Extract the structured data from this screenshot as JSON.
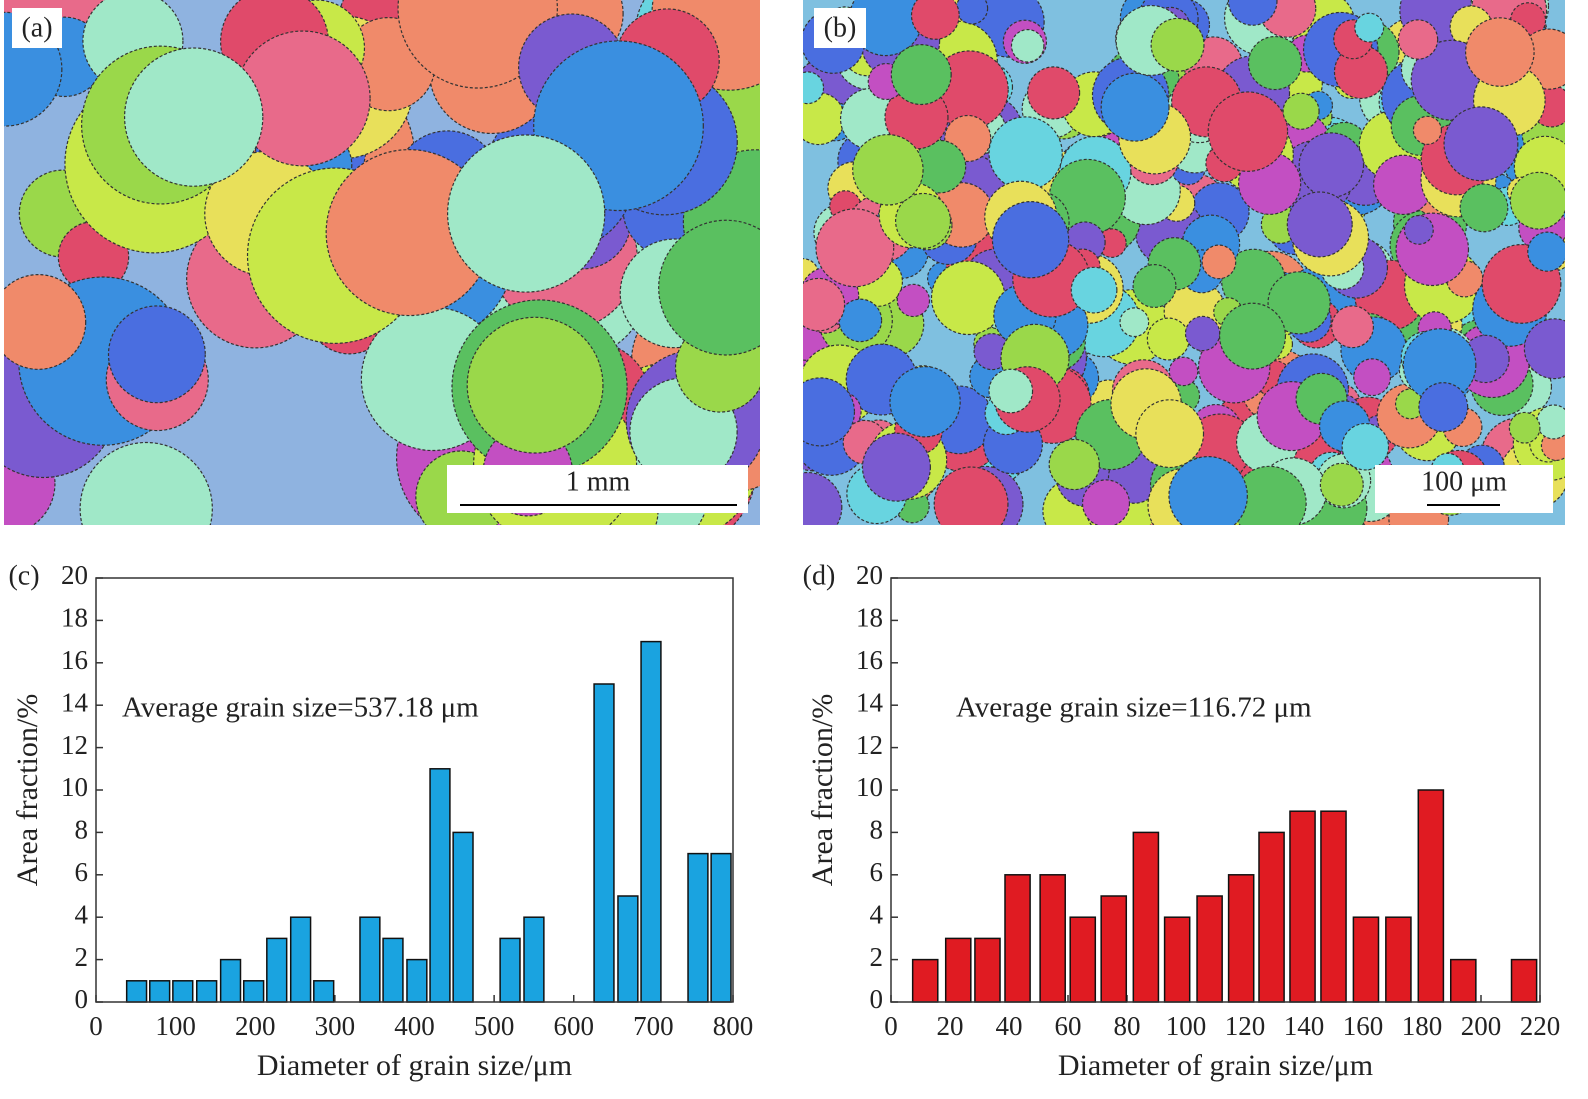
{
  "panels": [
    {
      "label": "(a)",
      "scale_bar": "1 mm"
    },
    {
      "label": "(b)",
      "scale_bar": "100 μm"
    }
  ],
  "chart_data": [
    {
      "type": "bar",
      "panel_label": "(c)",
      "annotation": "Average grain size=537.18 μm",
      "x_label": "Diameter of grain size/μm",
      "y_label": "Area fraction/%",
      "color": "#1aa3e0",
      "x": [
        51,
        80,
        109,
        139,
        169,
        198,
        227,
        257,
        286,
        344,
        373,
        403,
        432,
        461,
        520,
        550,
        638,
        668,
        697,
        756,
        785
      ],
      "values": [
        1,
        1,
        1,
        1,
        2,
        1,
        3,
        4,
        1,
        4,
        3,
        2,
        11,
        8,
        3,
        4,
        15,
        5,
        17,
        7,
        7
      ],
      "xlim": [
        0,
        800
      ],
      "xticks": [
        0,
        100,
        200,
        300,
        400,
        500,
        600,
        700,
        800
      ],
      "ylim": [
        0,
        20
      ],
      "yticks": [
        0,
        2,
        4,
        6,
        8,
        10,
        12,
        14,
        16,
        18,
        20
      ]
    },
    {
      "type": "bar",
      "panel_label": "(d)",
      "annotation": "Average grain size=116.72 μm",
      "x_label": "Diameter of grain size/μm",
      "y_label": "Area fraction/%",
      "color": "#e01b22",
      "x": [
        11.6,
        22.8,
        32.7,
        42.9,
        54.8,
        65,
        75.5,
        86.4,
        97,
        108,
        118.7,
        129,
        139.5,
        150,
        161,
        172,
        183,
        194,
        214.6
      ],
      "values": [
        2,
        3,
        3,
        6,
        6,
        4,
        5,
        8,
        4,
        5,
        6,
        8,
        9,
        9,
        4,
        4,
        10,
        2,
        2
      ],
      "xlim": [
        0,
        220
      ],
      "xticks": [
        0,
        20,
        40,
        60,
        80,
        100,
        120,
        140,
        160,
        180,
        200,
        220
      ],
      "ylim": [
        0,
        20
      ],
      "yticks": [
        0,
        2,
        4,
        6,
        8,
        10,
        12,
        14,
        16,
        18,
        20
      ]
    }
  ]
}
